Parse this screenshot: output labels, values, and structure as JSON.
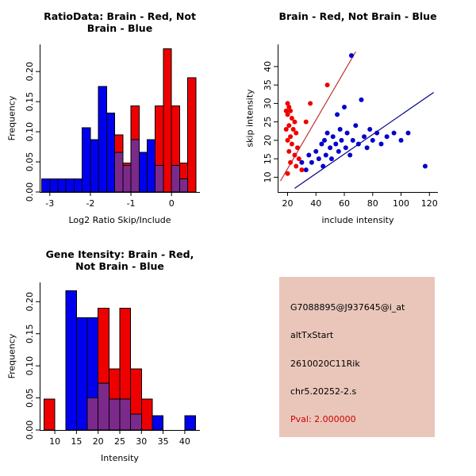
{
  "colors": {
    "blue": "#0000ee",
    "red": "#ee0000",
    "purple": "#7b2a8b",
    "point_blue": "#0000cd",
    "point_red": "#ee0000",
    "line_red": "#c03333",
    "line_blue": "#00008b"
  },
  "chart_data": [
    {
      "type": "histogram",
      "title": "RatioData: Brain - Red, Not Brain - Blue",
      "xlabel": "Log2 Ratio Skip/Include",
      "ylabel": "Frequency",
      "xlim": [
        -3.25,
        0.7
      ],
      "ylim": [
        0,
        0.245
      ],
      "xticks": [
        -3,
        -2,
        -1,
        0
      ],
      "xtick_labels": [
        "-3",
        "-2",
        "-1",
        "0"
      ],
      "yticks": [
        0,
        0.05,
        0.1,
        0.15,
        0.2
      ],
      "ytick_labels": [
        "0.00",
        "0.05",
        "0.10",
        "0.15",
        "0.20"
      ],
      "bin_width": 0.2,
      "grid": false,
      "series": [
        {
          "name": "not-brain",
          "color_key": "blue",
          "bars": [
            [
              -3.2,
              0.022
            ],
            [
              -3.0,
              0.022
            ],
            [
              -2.8,
              0.022
            ],
            [
              -2.6,
              0.022
            ],
            [
              -2.4,
              0.022
            ],
            [
              -2.2,
              0.107
            ],
            [
              -2.0,
              0.087
            ],
            [
              -1.8,
              0.175
            ],
            [
              -1.6,
              0.131
            ],
            [
              -1.4,
              0.066
            ],
            [
              -1.2,
              0.044
            ],
            [
              -1.0,
              0.087
            ],
            [
              -0.8,
              0.066
            ],
            [
              -0.6,
              0.087
            ],
            [
              -0.4,
              0.044
            ],
            [
              0.0,
              0.044
            ],
            [
              0.2,
              0.022
            ]
          ]
        },
        {
          "name": "brain",
          "color_key": "red",
          "bars": [
            [
              -1.4,
              0.095
            ],
            [
              -1.2,
              0.048
            ],
            [
              -1.0,
              0.143
            ],
            [
              -0.4,
              0.143
            ],
            [
              -0.2,
              0.238
            ],
            [
              0.0,
              0.143
            ],
            [
              0.2,
              0.048
            ],
            [
              0.4,
              0.19
            ]
          ]
        },
        {
          "name": "overlap",
          "color_key": "purple",
          "bars": [
            [
              -1.4,
              0.066
            ],
            [
              -1.2,
              0.044
            ],
            [
              -1.0,
              0.087
            ],
            [
              -0.4,
              0.044
            ],
            [
              0.0,
              0.044
            ],
            [
              0.2,
              0.022
            ]
          ]
        }
      ]
    },
    {
      "type": "scatter",
      "title": "Brain - Red, Not Brain - Blue",
      "xlabel": "include intensity",
      "ylabel": "skip intensity",
      "xlim": [
        13,
        126
      ],
      "ylim": [
        6,
        46
      ],
      "xticks": [
        20,
        40,
        60,
        80,
        100,
        120
      ],
      "xtick_labels": [
        "20",
        "40",
        "60",
        "80",
        "100",
        "120"
      ],
      "yticks": [
        10,
        15,
        20,
        25,
        30,
        35,
        40
      ],
      "ytick_labels": [
        "10",
        "15",
        "20",
        "25",
        "30",
        "35",
        "40"
      ],
      "grid": false,
      "red_points": [
        [
          20,
          30
        ],
        [
          21,
          29
        ],
        [
          19,
          28
        ],
        [
          22,
          28
        ],
        [
          20,
          27
        ],
        [
          23,
          26
        ],
        [
          25,
          25
        ],
        [
          21,
          24
        ],
        [
          19,
          23
        ],
        [
          24,
          23
        ],
        [
          26,
          22
        ],
        [
          22,
          21
        ],
        [
          20,
          20
        ],
        [
          23,
          19
        ],
        [
          27,
          18
        ],
        [
          21,
          17
        ],
        [
          25,
          16
        ],
        [
          28,
          15
        ],
        [
          22,
          14
        ],
        [
          26,
          13
        ],
        [
          30,
          12
        ],
        [
          20,
          11
        ],
        [
          33,
          25
        ],
        [
          36,
          30
        ],
        [
          48,
          35
        ]
      ],
      "blue_points": [
        [
          30,
          14
        ],
        [
          33,
          12
        ],
        [
          35,
          16
        ],
        [
          37,
          14
        ],
        [
          40,
          17
        ],
        [
          42,
          15
        ],
        [
          44,
          19
        ],
        [
          45,
          13
        ],
        [
          46,
          20
        ],
        [
          47,
          16
        ],
        [
          48,
          22
        ],
        [
          50,
          18
        ],
        [
          51,
          15
        ],
        [
          52,
          21
        ],
        [
          54,
          19
        ],
        [
          55,
          27
        ],
        [
          56,
          17
        ],
        [
          57,
          23
        ],
        [
          58,
          20
        ],
        [
          60,
          29
        ],
        [
          61,
          18
        ],
        [
          62,
          22
        ],
        [
          64,
          16
        ],
        [
          65,
          43
        ],
        [
          66,
          20
        ],
        [
          68,
          24
        ],
        [
          70,
          19
        ],
        [
          72,
          31
        ],
        [
          74,
          21
        ],
        [
          76,
          18
        ],
        [
          78,
          23
        ],
        [
          80,
          20
        ],
        [
          83,
          22
        ],
        [
          86,
          19
        ],
        [
          90,
          21
        ],
        [
          95,
          22
        ],
        [
          100,
          20
        ],
        [
          105,
          22
        ],
        [
          117,
          13
        ]
      ],
      "red_line": [
        [
          15,
          9
        ],
        [
          68,
          44
        ]
      ],
      "blue_line": [
        [
          25,
          7
        ],
        [
          123,
          33
        ]
      ]
    },
    {
      "type": "histogram",
      "title": "Gene Itensity: Brain - Red, Not Brain - Blue",
      "xlabel": "Intensity",
      "ylabel": "Frequency",
      "xlim": [
        6.5,
        43.5
      ],
      "ylim": [
        0,
        0.23
      ],
      "xticks": [
        10,
        15,
        20,
        25,
        30,
        35,
        40
      ],
      "xtick_labels": [
        "10",
        "15",
        "20",
        "25",
        "30",
        "35",
        "40"
      ],
      "yticks": [
        0,
        0.05,
        0.1,
        0.15,
        0.2
      ],
      "ytick_labels": [
        "0.00",
        "0.05",
        "0.10",
        "0.15",
        "0.20"
      ],
      "bin_width": 2.5,
      "grid": false,
      "series": [
        {
          "name": "not-brain",
          "color_key": "blue",
          "bars": [
            [
              12.5,
              0.217
            ],
            [
              15,
              0.175
            ],
            [
              17.5,
              0.175
            ],
            [
              20,
              0.073
            ],
            [
              22.5,
              0.048
            ],
            [
              25,
              0.048
            ],
            [
              27.5,
              0.025
            ],
            [
              32.5,
              0.022
            ],
            [
              40,
              0.022
            ]
          ]
        },
        {
          "name": "brain",
          "color_key": "red",
          "bars": [
            [
              7.5,
              0.048
            ],
            [
              17.5,
              0.05
            ],
            [
              20,
              0.19
            ],
            [
              22.5,
              0.095
            ],
            [
              25,
              0.19
            ],
            [
              27.5,
              0.095
            ],
            [
              30,
              0.048
            ]
          ]
        },
        {
          "name": "overlap",
          "color_key": "purple",
          "bars": [
            [
              17.5,
              0.05
            ],
            [
              20,
              0.073
            ],
            [
              22.5,
              0.048
            ],
            [
              25,
              0.048
            ],
            [
              27.5,
              0.025
            ]
          ]
        }
      ]
    },
    {
      "type": "info",
      "background": "#eac6ba",
      "lines": [
        {
          "text": "G7088895@J937645@i_at",
          "color": "#000000"
        },
        {
          "text": "altTxStart",
          "color": "#000000"
        },
        {
          "text": "2610020C11Rik",
          "color": "#000000"
        },
        {
          "text": "chr5.20252-2.s",
          "color": "#000000"
        },
        {
          "text": "Pval: 2.000000",
          "color": "#cc0000"
        }
      ]
    }
  ]
}
